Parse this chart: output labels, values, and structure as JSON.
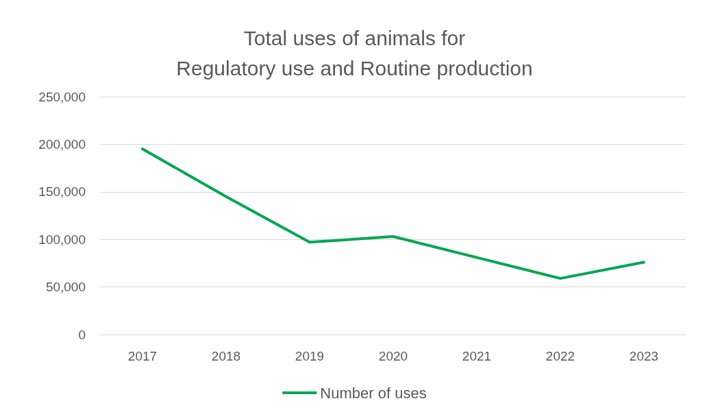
{
  "chart_data": {
    "type": "line",
    "title": "Total uses of animals for\nRegulatory use and Routine production",
    "categories": [
      "2017",
      "2018",
      "2019",
      "2020",
      "2021",
      "2022",
      "2023"
    ],
    "series": [
      {
        "name": "Number of uses",
        "color": "#00a650",
        "values": [
          195000,
          145000,
          97000,
          103000,
          81000,
          59000,
          76000
        ]
      }
    ],
    "ylim": [
      0,
      250000
    ],
    "yticks": [
      0,
      {
        "value": 50000,
        "label": "50,000"
      },
      {
        "value": 100000,
        "label": "100,000"
      },
      {
        "value": 150000,
        "label": "150,000"
      },
      {
        "value": 200000,
        "label": "200,000"
      },
      {
        "value": 250000,
        "label": "250,000"
      }
    ],
    "grid": "y",
    "legend": "bottom",
    "marker": "none",
    "line_style": "solid"
  }
}
